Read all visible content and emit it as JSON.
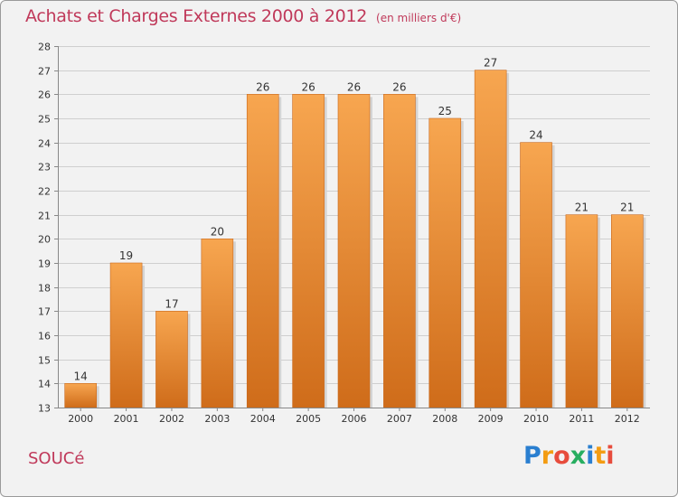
{
  "header": {
    "title": "Achats et Charges Externes 2000 à 2012",
    "unit": "(en milliers d'€)"
  },
  "footer": {
    "city": "SOUCé",
    "brand_letters": [
      "P",
      "r",
      "o",
      "x",
      "i",
      "t",
      "i"
    ],
    "brand_colors": [
      "#2a7fd0",
      "#f39c12",
      "#e74c3c",
      "#27ae60",
      "#2a7fd0",
      "#f39c12",
      "#e74c3c"
    ]
  },
  "colors": {
    "bar_light": "#f7a650",
    "bar_dark": "#cf6c1a",
    "grid": "#cfcfcf",
    "axis": "#888888",
    "text": "#333333",
    "title": "#c0395a"
  },
  "chart_data": {
    "type": "bar",
    "title": "Achats et Charges Externes 2000 à 2012",
    "subtitle": "(en milliers d'€)",
    "xlabel": "",
    "ylabel": "",
    "categories": [
      "2000",
      "2001",
      "2002",
      "2003",
      "2004",
      "2005",
      "2006",
      "2007",
      "2008",
      "2009",
      "2010",
      "2011",
      "2012"
    ],
    "values": [
      14,
      19,
      17,
      20,
      26,
      26,
      26,
      26,
      25,
      27,
      24,
      21,
      21
    ],
    "ylim": [
      13,
      28
    ],
    "yticks": [
      13,
      14,
      15,
      16,
      17,
      18,
      19,
      20,
      21,
      22,
      23,
      24,
      25,
      26,
      27,
      28
    ],
    "grid": true,
    "legend": "none"
  }
}
